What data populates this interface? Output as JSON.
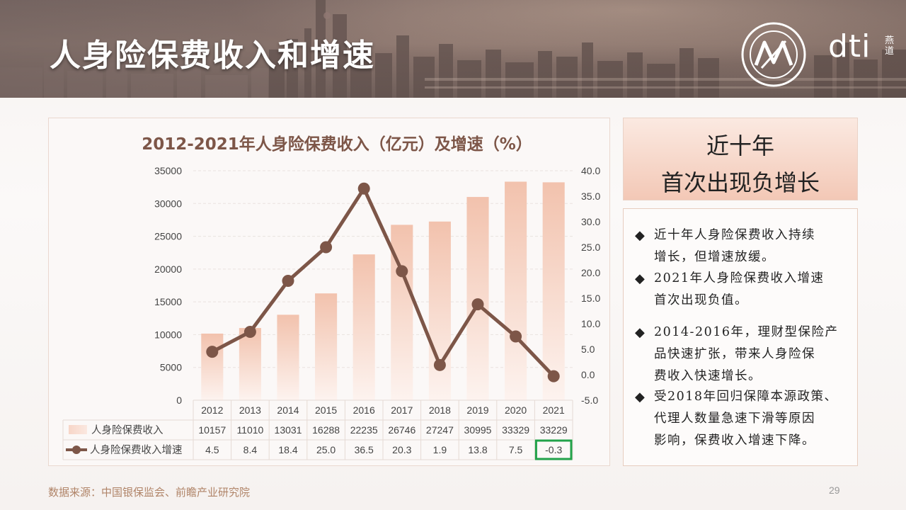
{
  "page": {
    "title": "人身险保费收入和增速",
    "brand": "dti",
    "brand_cn": "燕道",
    "page_number": "29",
    "source_note": "数据来源：中国银保监会、前瞻产业研究院"
  },
  "headline": {
    "line1": "近十年",
    "line2": "首次出现负增长"
  },
  "notes": [
    {
      "bullet": "◆",
      "lines": [
        "近十年人身险保费收入持续",
        "增长，但增速放缓。"
      ]
    },
    {
      "bullet": "◆",
      "lines": [
        "2021年人身险保费收入增速",
        "首次出现负值。"
      ]
    },
    {
      "bullet": "◆",
      "lines": [
        "2014-2016年，理财型保险产",
        "品快速扩张，带来人身险保",
        "费收入快速增长。"
      ]
    },
    {
      "bullet": "◆",
      "lines": [
        "受2018年回归保障本源政策、",
        "代理人数量急速下滑等原因",
        "影响，保费收入增速下降。"
      ]
    }
  ],
  "colors": {
    "bar_top": "#f2c2ad",
    "bar_bottom": "#fdf3ef",
    "line": "#7d5648",
    "title": "#7d5648",
    "highlight_box": "#22a24a"
  },
  "chart_data": {
    "type": "bar",
    "title": "2012-2021年人身险保费收入（亿元）及增速（%）",
    "categories": [
      "2012",
      "2013",
      "2014",
      "2015",
      "2016",
      "2017",
      "2018",
      "2019",
      "2020",
      "2021"
    ],
    "series": [
      {
        "name": "人身险保费收入",
        "type": "bar",
        "axis": "left",
        "values": [
          10157,
          11010,
          13031,
          16288,
          22235,
          26746,
          27247,
          30995,
          33329,
          33229
        ]
      },
      {
        "name": "人身险保费收入增速",
        "type": "line",
        "axis": "right",
        "values": [
          4.5,
          8.4,
          18.4,
          25.0,
          36.5,
          20.3,
          1.9,
          13.8,
          7.5,
          -0.3
        ]
      }
    ],
    "left_axis": {
      "ylim": [
        0,
        35000
      ],
      "ticks": [
        "35000",
        "30000",
        "25000",
        "20000",
        "15000",
        "10000",
        "5000",
        "0"
      ]
    },
    "right_axis": {
      "ylim": [
        -5,
        40
      ],
      "ticks": [
        "40.0",
        "35.0",
        "30.0",
        "25.0",
        "20.0",
        "15.0",
        "10.0",
        "5.0",
        "0.0",
        "-5.0"
      ]
    },
    "table": {
      "row_labels": [
        "人身险保费收入",
        "人身险保费收入增速"
      ],
      "bar_row": [
        "10157",
        "11010",
        "13031",
        "16288",
        "22235",
        "26746",
        "27247",
        "30995",
        "33329",
        "33229"
      ],
      "line_row": [
        "4.5",
        "8.4",
        "18.4",
        "25.0",
        "36.5",
        "20.3",
        "1.9",
        "13.8",
        "7.5",
        "-0.3"
      ]
    },
    "highlighted_cell": "-0.3",
    "grid": true
  }
}
